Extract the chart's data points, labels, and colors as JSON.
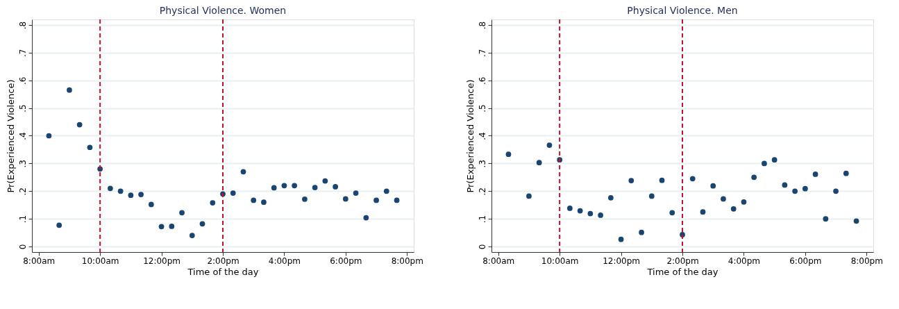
{
  "chart_data": [
    {
      "type": "scatter",
      "title": "Physical Violence. Women",
      "xlabel": "Time of the day",
      "ylabel": "Pr(Experienced Violence)",
      "x": [
        8.333,
        8.667,
        9.0,
        9.333,
        9.667,
        10.0,
        10.333,
        10.667,
        11.0,
        11.333,
        11.667,
        12.0,
        12.333,
        12.667,
        13.0,
        13.333,
        13.667,
        14.0,
        14.333,
        14.667,
        15.0,
        15.333,
        15.667,
        16.0,
        16.333,
        16.667,
        17.0,
        17.333,
        17.667,
        18.0,
        18.333,
        18.667,
        19.0,
        19.333,
        19.667
      ],
      "series": [
        {
          "color": "#1a4570",
          "values": [
            0.4,
            0.077,
            0.565,
            0.44,
            0.358,
            0.28,
            0.21,
            0.2,
            0.185,
            0.188,
            0.152,
            0.072,
            0.073,
            0.122,
            0.04,
            0.082,
            0.158,
            0.19,
            0.193,
            0.27,
            0.167,
            0.16,
            0.212,
            0.22,
            0.22,
            0.171,
            0.213,
            0.237,
            0.216,
            0.172,
            0.193,
            0.104,
            0.167,
            0.2,
            0.167
          ]
        }
      ],
      "xlim": [
        7.78,
        20.22
      ],
      "ylim": [
        -0.02,
        0.82
      ],
      "xticks": [
        {
          "value": 8,
          "label": "8:00am"
        },
        {
          "value": 10,
          "label": "10:00am"
        },
        {
          "value": 12,
          "label": "12:00pm"
        },
        {
          "value": 14,
          "label": "2:00pm"
        },
        {
          "value": 16,
          "label": "4:00pm"
        },
        {
          "value": 18,
          "label": "6:00pm"
        },
        {
          "value": 20,
          "label": "8:00pm"
        }
      ],
      "yticks": [
        0,
        {
          "value": 0.1,
          "label": ".1"
        },
        {
          "value": 0.2,
          "label": ".2"
        },
        {
          "value": 0.3,
          "label": ".3"
        },
        {
          "value": 0.4,
          "label": ".4"
        },
        {
          "value": 0.5,
          "label": ".5"
        },
        {
          "value": 0.6,
          "label": ".6"
        },
        {
          "value": 0.7,
          "label": ".7"
        },
        {
          "value": 0.8,
          "label": ".8"
        }
      ],
      "ref_lines": [
        {
          "axis": "x",
          "value": 10,
          "color": "#c8102e",
          "line_style": "dashed"
        },
        {
          "axis": "x",
          "value": 14,
          "color": "#c8102e",
          "line_style": "dashed"
        }
      ],
      "grid": "y",
      "marker": "circle"
    },
    {
      "type": "scatter",
      "title": "Physical Violence. Men",
      "xlabel": "Time of the day",
      "ylabel": "Pr(Experienced Violence)",
      "x": [
        8.333,
        9.0,
        9.333,
        9.667,
        10.0,
        10.333,
        10.667,
        11.0,
        11.333,
        11.667,
        12.0,
        12.333,
        12.667,
        13.0,
        13.333,
        13.667,
        14.0,
        14.333,
        14.667,
        15.0,
        15.333,
        15.667,
        16.0,
        16.333,
        16.667,
        17.0,
        17.333,
        17.667,
        18.0,
        18.333,
        18.667,
        19.0,
        19.333,
        19.667
      ],
      "series": [
        {
          "color": "#1a4570",
          "values": [
            0.333,
            0.182,
            0.303,
            0.366,
            0.313,
            0.138,
            0.129,
            0.119,
            0.113,
            0.176,
            0.026,
            0.238,
            0.051,
            0.182,
            0.239,
            0.122,
            0.043,
            0.245,
            0.125,
            0.219,
            0.172,
            0.136,
            0.161,
            0.25,
            0.3,
            0.313,
            0.222,
            0.2,
            0.209,
            0.261,
            0.1,
            0.2,
            0.264,
            0.092
          ]
        }
      ],
      "xlim": [
        7.78,
        20.22
      ],
      "ylim": [
        -0.02,
        0.82
      ],
      "xticks": [
        {
          "value": 8,
          "label": "8:00am"
        },
        {
          "value": 10,
          "label": "10:00am"
        },
        {
          "value": 12,
          "label": "12:00pm"
        },
        {
          "value": 14,
          "label": "2:00pm"
        },
        {
          "value": 16,
          "label": "4:00pm"
        },
        {
          "value": 18,
          "label": "6:00pm"
        },
        {
          "value": 20,
          "label": "8:00pm"
        }
      ],
      "yticks": [
        0,
        {
          "value": 0.1,
          "label": ".1"
        },
        {
          "value": 0.2,
          "label": ".2"
        },
        {
          "value": 0.3,
          "label": ".3"
        },
        {
          "value": 0.4,
          "label": ".4"
        },
        {
          "value": 0.5,
          "label": ".5"
        },
        {
          "value": 0.6,
          "label": ".6"
        },
        {
          "value": 0.7,
          "label": ".7"
        },
        {
          "value": 0.8,
          "label": ".8"
        }
      ],
      "ref_lines": [
        {
          "axis": "x",
          "value": 10,
          "color": "#c8102e",
          "line_style": "dashed"
        },
        {
          "axis": "x",
          "value": 14,
          "color": "#c8102e",
          "line_style": "dashed"
        }
      ],
      "grid": "y",
      "marker": "circle"
    }
  ]
}
